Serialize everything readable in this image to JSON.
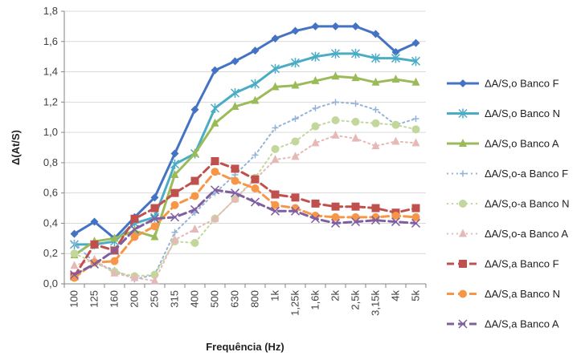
{
  "chart_data": {
    "type": "line",
    "title": "",
    "xlabel": "Frequência (Hz)",
    "ylabel": "Δ(At/S)",
    "ylim": [
      0,
      1.8
    ],
    "yticks": [
      "0,0",
      "0,2",
      "0,4",
      "0,6",
      "0,8",
      "1,0",
      "1,2",
      "1,4",
      "1,6",
      "1,8"
    ],
    "grid": "horizontal",
    "legend_position": "right",
    "categories": [
      "100",
      "125",
      "160",
      "200",
      "250",
      "315",
      "400",
      "500",
      "630",
      "800",
      "1k",
      "1,25k",
      "1,6k",
      "2k",
      "2,5k",
      "3,15k",
      "4k",
      "5k"
    ],
    "series": [
      {
        "name": "ΔA/S,o Banco F",
        "color": "#4472C4",
        "style": "solid",
        "marker": "diamond",
        "values": [
          0.33,
          0.41,
          0.3,
          0.44,
          0.57,
          0.86,
          1.15,
          1.41,
          1.47,
          1.54,
          1.62,
          1.67,
          1.7,
          1.7,
          1.7,
          1.65,
          1.53,
          1.59
        ]
      },
      {
        "name": "ΔA/S,o Banco N",
        "color": "#4BACC6",
        "style": "solid",
        "marker": "star",
        "values": [
          0.26,
          0.26,
          0.28,
          0.4,
          0.44,
          0.79,
          0.86,
          1.16,
          1.26,
          1.32,
          1.42,
          1.46,
          1.5,
          1.52,
          1.52,
          1.49,
          1.49,
          1.47
        ]
      },
      {
        "name": "ΔA/S,o Banco A",
        "color": "#9BBB59",
        "style": "solid",
        "marker": "triangle",
        "values": [
          0.19,
          0.28,
          0.3,
          0.35,
          0.31,
          0.72,
          0.86,
          1.06,
          1.17,
          1.21,
          1.3,
          1.31,
          1.34,
          1.37,
          1.36,
          1.33,
          1.35,
          1.33
        ]
      },
      {
        "name": "ΔA/S,o-a Banco F",
        "color": "#95B3D7",
        "style": "dotted",
        "marker": "plus",
        "values": [
          0.27,
          0.14,
          0.09,
          0.03,
          0.06,
          0.34,
          0.47,
          0.6,
          0.72,
          0.85,
          1.03,
          1.09,
          1.16,
          1.2,
          1.19,
          1.15,
          1.05,
          1.09
        ]
      },
      {
        "name": "ΔA/S,o-a Banco N",
        "color": "#C3D69B",
        "style": "dotted",
        "marker": "circle",
        "values": [
          0.2,
          0.14,
          0.08,
          0.05,
          0.06,
          0.28,
          0.27,
          0.43,
          0.56,
          0.7,
          0.89,
          0.94,
          1.04,
          1.08,
          1.07,
          1.06,
          1.05,
          1.02
        ]
      },
      {
        "name": "ΔA/S,o-a Banco A",
        "color": "#E6B9B8",
        "style": "dotted",
        "marker": "triangle",
        "values": [
          0.12,
          0.16,
          0.07,
          0.04,
          0.02,
          0.29,
          0.36,
          0.43,
          0.56,
          0.69,
          0.82,
          0.84,
          0.93,
          0.98,
          0.96,
          0.91,
          0.94,
          0.93
        ]
      },
      {
        "name": "ΔA/S,a Banco F",
        "color": "#C0504D",
        "style": "dashed",
        "marker": "square",
        "values": [
          0.05,
          0.26,
          0.22,
          0.43,
          0.5,
          0.6,
          0.68,
          0.81,
          0.76,
          0.69,
          0.59,
          0.57,
          0.53,
          0.51,
          0.51,
          0.5,
          0.47,
          0.5
        ]
      },
      {
        "name": "ΔA/S,a Banco N",
        "color": "#F79646",
        "style": "dashed",
        "marker": "circle",
        "values": [
          0.04,
          0.14,
          0.15,
          0.31,
          0.38,
          0.52,
          0.58,
          0.74,
          0.68,
          0.63,
          0.52,
          0.5,
          0.45,
          0.44,
          0.44,
          0.44,
          0.45,
          0.44
        ]
      },
      {
        "name": "ΔA/S,a Banco A",
        "color": "#7F5FA0",
        "style": "dashed",
        "marker": "x",
        "values": [
          0.06,
          0.13,
          0.22,
          0.36,
          0.43,
          0.44,
          0.49,
          0.62,
          0.6,
          0.54,
          0.48,
          0.48,
          0.43,
          0.4,
          0.41,
          0.42,
          0.41,
          0.4
        ]
      }
    ]
  }
}
